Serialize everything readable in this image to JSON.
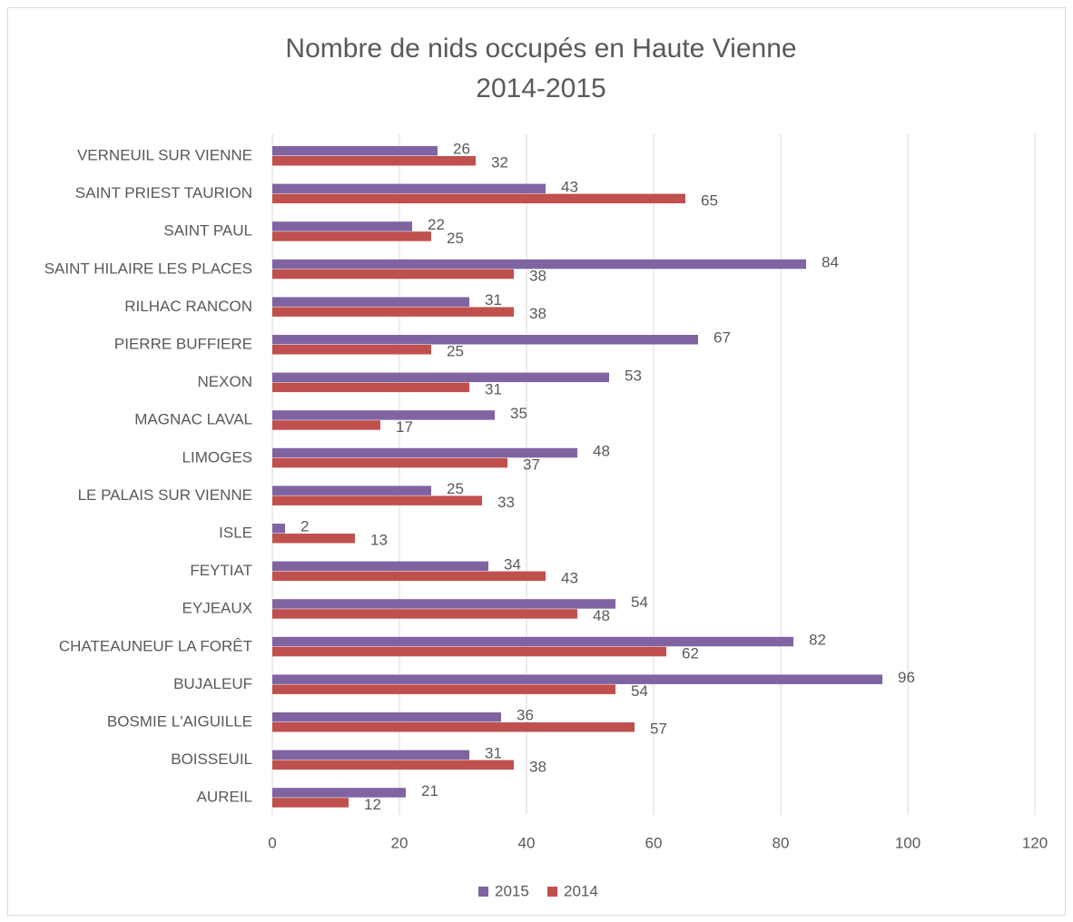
{
  "chart_data": {
    "type": "bar",
    "orientation": "horizontal",
    "title": "Nombre de nids occupés en Haute Vienne",
    "subtitle": "2014-2015",
    "categories": [
      "VERNEUIL SUR VIENNE",
      "SAINT PRIEST TAURION",
      "SAINT PAUL",
      "SAINT HILAIRE LES PLACES",
      "RILHAC RANCON",
      "PIERRE BUFFIERE",
      "NEXON",
      "MAGNAC LAVAL",
      "LIMOGES",
      "LE PALAIS SUR VIENNE",
      "ISLE",
      "FEYTIAT",
      "EYJEAUX",
      "CHATEAUNEUF LA FORÊT",
      "BUJALEUF",
      "BOSMIE L'AIGUILLE",
      "BOISSEUIL",
      "AUREIL"
    ],
    "series": [
      {
        "name": "2015",
        "color": "#8064a2",
        "values": [
          26,
          43,
          22,
          84,
          31,
          67,
          53,
          35,
          48,
          25,
          2,
          34,
          54,
          82,
          96,
          36,
          31,
          21
        ]
      },
      {
        "name": "2014",
        "color": "#c0504d",
        "values": [
          32,
          65,
          25,
          38,
          38,
          25,
          31,
          17,
          37,
          33,
          13,
          43,
          48,
          62,
          54,
          57,
          38,
          12
        ]
      }
    ],
    "xlim": [
      0,
      120
    ],
    "xticks": [
      0,
      20,
      40,
      60,
      80,
      100,
      120
    ],
    "grid": true,
    "legend": "bottom"
  }
}
